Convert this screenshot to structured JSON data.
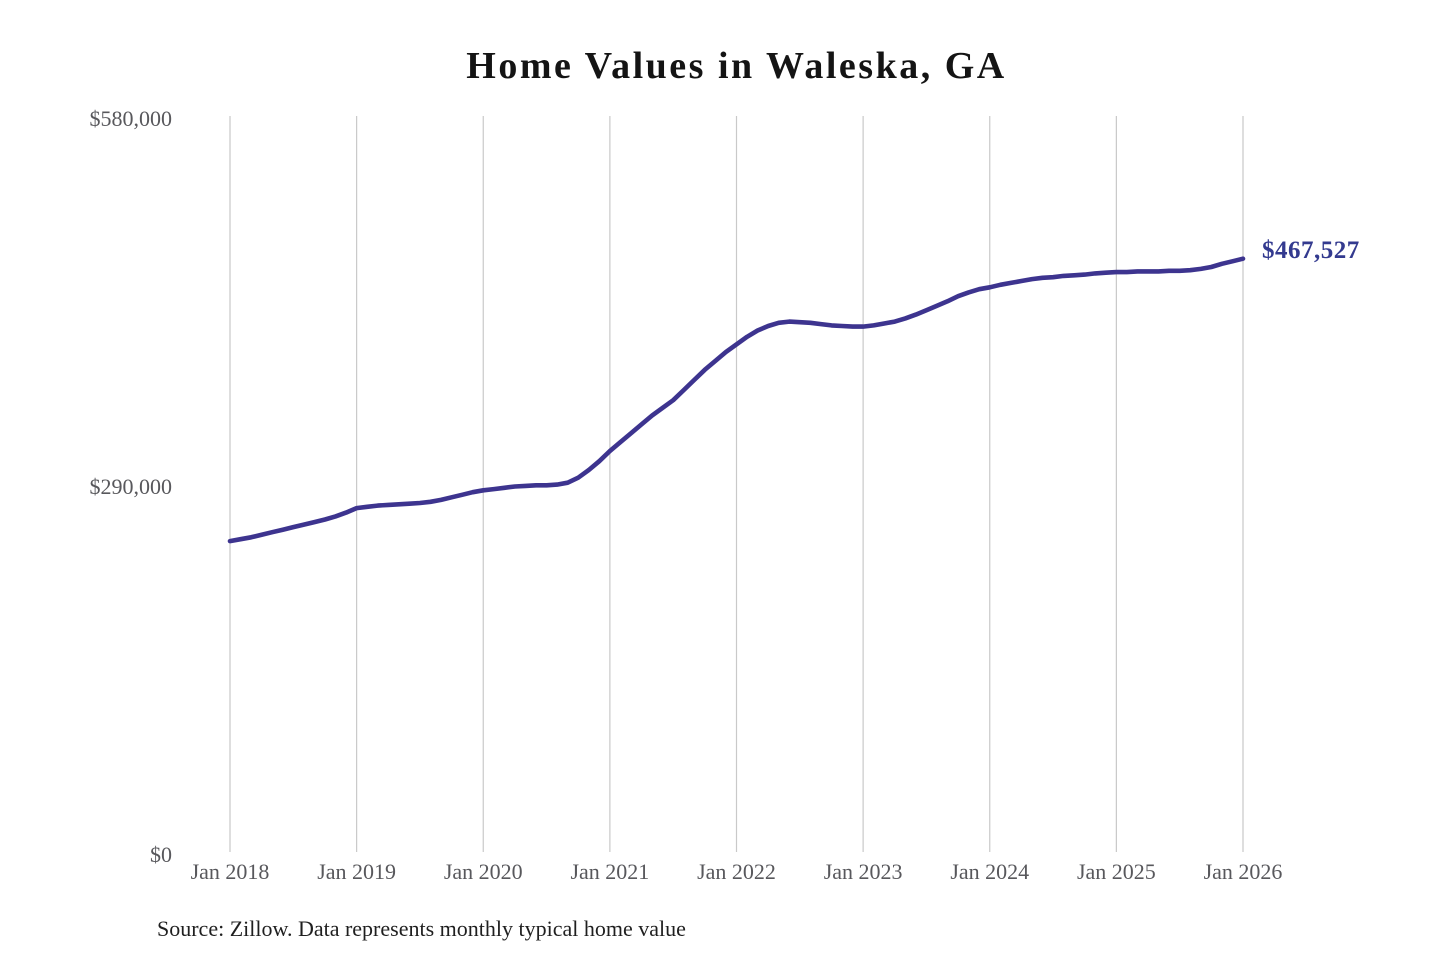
{
  "page": {
    "background": "#ffffff"
  },
  "source": {
    "text": "Source: Zillow. Data represents monthly typical home value"
  },
  "chart_data": {
    "type": "line",
    "title": "Home Values in Waleska, GA",
    "xlabel": "",
    "ylabel": "",
    "ylim": [
      0,
      580000
    ],
    "grid": "vertical-only",
    "legend": "none",
    "line_color": "#3d348f",
    "grid_color": "#c9c9c9",
    "end_label": "$467,527",
    "end_value": 467527,
    "y_ticks": [
      {
        "label": "$580,000",
        "value": 580000
      },
      {
        "label": "$290,000",
        "value": 290000
      },
      {
        "label": "$0",
        "value": 0
      }
    ],
    "x_tick_labels": [
      "Jan 2018",
      "Jan 2019",
      "Jan 2020",
      "Jan 2021",
      "Jan 2022",
      "Jan 2023",
      "Jan 2024",
      "Jan 2025",
      "Jan 2026"
    ],
    "series": [
      {
        "name": "Typical home value",
        "x": [
          "2018-01",
          "2018-02",
          "2018-03",
          "2018-04",
          "2018-05",
          "2018-06",
          "2018-07",
          "2018-08",
          "2018-09",
          "2018-10",
          "2018-11",
          "2018-12",
          "2019-01",
          "2019-02",
          "2019-03",
          "2019-04",
          "2019-05",
          "2019-06",
          "2019-07",
          "2019-08",
          "2019-09",
          "2019-10",
          "2019-11",
          "2019-12",
          "2020-01",
          "2020-02",
          "2020-03",
          "2020-04",
          "2020-05",
          "2020-06",
          "2020-07",
          "2020-08",
          "2020-09",
          "2020-10",
          "2020-11",
          "2020-12",
          "2021-01",
          "2021-02",
          "2021-03",
          "2021-04",
          "2021-05",
          "2021-06",
          "2021-07",
          "2021-08",
          "2021-09",
          "2021-10",
          "2021-11",
          "2021-12",
          "2022-01",
          "2022-02",
          "2022-03",
          "2022-04",
          "2022-05",
          "2022-06",
          "2022-07",
          "2022-08",
          "2022-09",
          "2022-10",
          "2022-11",
          "2022-12",
          "2023-01",
          "2023-02",
          "2023-03",
          "2023-04",
          "2023-05",
          "2023-06",
          "2023-07",
          "2023-08",
          "2023-09",
          "2023-10",
          "2023-11",
          "2023-12",
          "2024-01",
          "2024-02",
          "2024-03",
          "2024-04",
          "2024-05",
          "2024-06",
          "2024-07",
          "2024-08",
          "2024-09",
          "2024-10",
          "2024-11",
          "2024-12",
          "2025-01",
          "2025-02",
          "2025-03",
          "2025-04",
          "2025-05",
          "2025-06",
          "2025-07",
          "2025-08",
          "2025-09",
          "2025-10",
          "2025-11",
          "2025-12",
          "2026-01"
        ],
        "values": [
          245000,
          246500,
          248000,
          250000,
          252000,
          254000,
          256000,
          258000,
          260000,
          262000,
          264500,
          267500,
          271000,
          272000,
          273000,
          273500,
          274000,
          274500,
          275000,
          276000,
          277500,
          279500,
          281500,
          283500,
          285000,
          286000,
          287000,
          288000,
          288500,
          289000,
          289000,
          289500,
          291000,
          295000,
          301000,
          308000,
          316000,
          323000,
          330000,
          337000,
          344000,
          350000,
          356000,
          364000,
          372000,
          380000,
          387000,
          394000,
          400000,
          406000,
          411000,
          414500,
          417000,
          418000,
          417500,
          417000,
          416000,
          415000,
          414500,
          414000,
          414000,
          415000,
          416500,
          418000,
          420500,
          423500,
          427000,
          430500,
          434000,
          438000,
          441000,
          443500,
          445000,
          447000,
          448500,
          450000,
          451500,
          452500,
          453000,
          454000,
          454500,
          455000,
          456000,
          456500,
          457000,
          457000,
          457500,
          457500,
          457500,
          458000,
          458000,
          458500,
          459500,
          461000,
          463500,
          465500,
          467527
        ]
      }
    ]
  }
}
